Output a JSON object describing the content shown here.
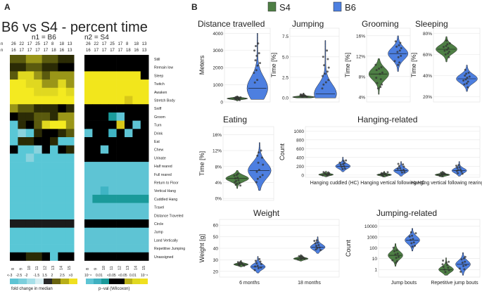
{
  "panel_a": {
    "label": "A",
    "title": "B6 vs S4 - percent time",
    "n_labels": {
      "left": "n1 = B6",
      "right": "n2 = S4"
    },
    "n1_prefix": "n",
    "n2_prefix": "n",
    "n1_values": [
      "26",
      "22",
      "17",
      "25",
      "17",
      "8",
      "18",
      "13",
      "26",
      "22",
      "17",
      "25",
      "17",
      "8",
      "18",
      "13"
    ],
    "n2_values": [
      "16",
      "17",
      "17",
      "17",
      "17",
      "18",
      "16",
      "13",
      "16",
      "17",
      "17",
      "17",
      "17",
      "18",
      "16",
      "13"
    ],
    "x_labels": [
      "8",
      "9",
      "10",
      "11",
      "12",
      "13",
      "14",
      "15",
      "8",
      "9",
      "10",
      "11",
      "12",
      "13",
      "14",
      "15"
    ],
    "behaviors": [
      "Still",
      "Remain low",
      "Sleep",
      "Twitch",
      "Awaken",
      "Stretch Body",
      "Sniff",
      "Groom",
      "Turn",
      "Drink",
      "Eat",
      "Chew",
      "Urinate",
      "Half reared",
      "Full reared",
      "Return to Floor",
      "Vertical Hang",
      "Cuddled Hang",
      "Travel",
      "Distance Traveled",
      "Circle",
      "Jump",
      "Land Vertically",
      "Repetitive Jumping",
      "Unassigned"
    ],
    "fold_change_legend": {
      "ticks": [
        "<-3",
        "-2.5",
        "-2",
        "-1.5",
        "1.5",
        "2",
        "2.5",
        ">3"
      ],
      "label": "fold change in median"
    },
    "pval_legend": {
      "ticks": [
        "10⁻⁶",
        "0.01",
        "<0.05",
        "<0.05",
        "0.01",
        "10⁻⁶"
      ],
      "label": "p−val (Wilcoxon)"
    },
    "colors": {
      "cyan": "#5ec4d4",
      "yellow": "#f0e020",
      "black": "#000000",
      "teal": "#1a9a9a"
    }
  },
  "panel_b": {
    "label": "B",
    "legend": [
      {
        "name": "S4",
        "color": "#4e7f45"
      },
      {
        "name": "B6",
        "color": "#4d7fe0"
      }
    ]
  },
  "chart_data": [
    {
      "type": "violin",
      "title": "Distance travelled",
      "ylabel": "Meters",
      "yticks": [
        "0",
        "1000",
        "2000",
        "3000",
        "4000"
      ],
      "ylim": [
        0,
        4300
      ],
      "series": [
        {
          "name": "S4",
          "median": 200,
          "range": [
            60,
            350
          ]
        },
        {
          "name": "B6",
          "median": 800,
          "range": [
            150,
            4000
          ]
        }
      ]
    },
    {
      "type": "violin",
      "title": "Jumping",
      "ylabel": "Time [%]",
      "yticks": [
        "0.0",
        "2.5",
        "5.0",
        "7.5"
      ],
      "ylim": [
        -0.5,
        8.5
      ],
      "series": [
        {
          "name": "S4",
          "median": 0.1,
          "range": [
            0,
            0.6
          ]
        },
        {
          "name": "B6",
          "median": 0.5,
          "range": [
            0,
            7
          ]
        }
      ]
    },
    {
      "type": "violin",
      "title": "Grooming",
      "ylabel": "Time [%]",
      "yticks": [
        "4%",
        "8%",
        "12%",
        "16%"
      ],
      "ylim": [
        3,
        17.5
      ],
      "series": [
        {
          "name": "S4",
          "median": 8.5,
          "range": [
            4.5,
            11.5
          ]
        },
        {
          "name": "B6",
          "median": 12.5,
          "range": [
            9,
            16
          ]
        }
      ]
    },
    {
      "type": "violin",
      "title": "Sleeping",
      "ylabel": "Time [%]",
      "yticks": [
        "20%",
        "40%",
        "60%",
        "80%"
      ],
      "ylim": [
        15,
        85
      ],
      "series": [
        {
          "name": "S4",
          "median": 65,
          "range": [
            53,
            77
          ]
        },
        {
          "name": "B6",
          "median": 37,
          "range": [
            25,
            50
          ]
        }
      ]
    },
    {
      "type": "violin",
      "title": "Eating",
      "ylabel": "Time [%]",
      "yticks": [
        "0%",
        "4%",
        "8%",
        "12%",
        "16%"
      ],
      "ylim": [
        -0.5,
        18
      ],
      "series": [
        {
          "name": "S4",
          "median": 5,
          "range": [
            2.5,
            7
          ]
        },
        {
          "name": "B6",
          "median": 7,
          "range": [
            2,
            14
          ]
        }
      ]
    },
    {
      "type": "violin",
      "title": "Hanging-related",
      "ylabel": "Count",
      "yticks": [
        "0",
        "200",
        "400",
        "600",
        "800",
        "1000"
      ],
      "ylim": [
        -50,
        1100
      ],
      "categories": [
        "Hanging cuddled (HC)",
        "Hanging vertical following HC",
        "Hanging vertical following rearing up"
      ],
      "series": [
        {
          "name": "S4",
          "medians": [
            10,
            5,
            5
          ]
        },
        {
          "name": "B6",
          "medians": [
            200,
            100,
            100
          ]
        }
      ]
    },
    {
      "type": "violin",
      "title": "Weight",
      "ylabel": "Weight [g]",
      "yticks": [
        "20",
        "30",
        "40",
        "50",
        "60"
      ],
      "ylim": [
        15,
        65
      ],
      "categories": [
        "6 months",
        "18 months"
      ],
      "series": [
        {
          "name": "S4",
          "medians": [
            26,
            31
          ]
        },
        {
          "name": "B6",
          "medians": [
            24,
            41
          ]
        }
      ]
    },
    {
      "type": "violin",
      "title": "Jumping-related",
      "ylabel": "Count",
      "yscale": "log",
      "yticks": [
        "1",
        "10",
        "100",
        "1000",
        "10000"
      ],
      "categories": [
        "Jump bouts",
        "Repetitive jump bouts"
      ],
      "series": [
        {
          "name": "S4",
          "medians": [
            20,
            1
          ]
        },
        {
          "name": "B6",
          "medians": [
            500,
            3
          ]
        }
      ]
    }
  ]
}
